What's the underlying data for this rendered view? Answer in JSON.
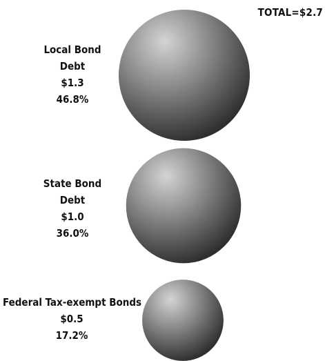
{
  "total_label": "TOTAL=$2.7",
  "chart_data": {
    "type": "bubble",
    "title": "",
    "total": 2.7,
    "series": [
      {
        "label_lines": [
          "Local Bond",
          "Debt"
        ],
        "value_text": "$1.3",
        "pct_text": "46.8%",
        "value": 1.3,
        "percent": 46.8
      },
      {
        "label_lines": [
          "State Bond",
          "Debt"
        ],
        "value_text": "$1.0",
        "pct_text": "36.0%",
        "value": 1.0,
        "percent": 36.0
      },
      {
        "label_lines": [
          "Federal Tax-exempt Bonds"
        ],
        "value_text": "$0.5",
        "pct_text": "17.2%",
        "value": 0.5,
        "percent": 17.2
      }
    ],
    "colors": {
      "sphere_light": "#d4d4d4",
      "sphere_mid": "#8a8a8a",
      "sphere_dark": "#2e2e2e"
    }
  }
}
